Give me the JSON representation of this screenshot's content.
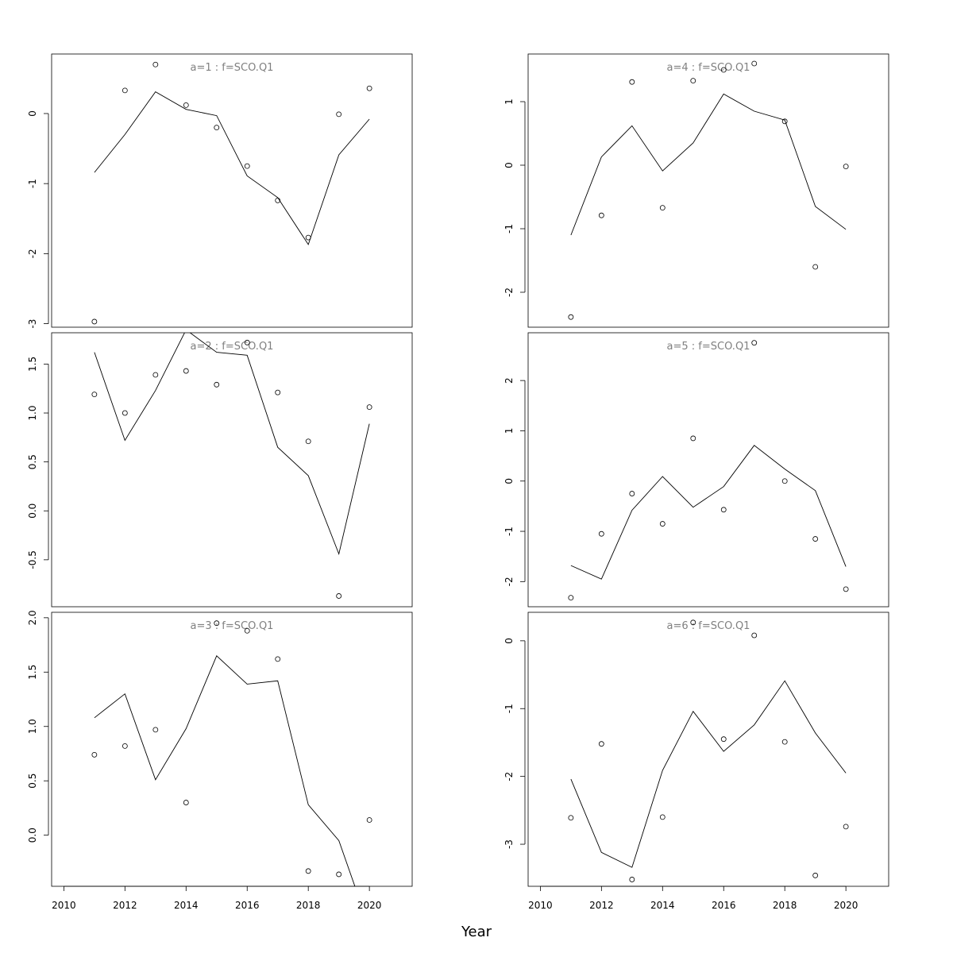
{
  "xlabel": "Year",
  "x_ticks": [
    "2010",
    "2012",
    "2014",
    "2016",
    "2018",
    "2020"
  ],
  "colors": {
    "title": "#808080",
    "line": "#000000",
    "points": "#000000"
  },
  "chart_data": [
    {
      "type": "line",
      "title": "a=1 : f=SCO.Q1",
      "x": [
        2011,
        2012,
        2013,
        2014,
        2015,
        2016,
        2017,
        2018,
        2019,
        2020
      ],
      "series": [
        {
          "values": [
            -0.84,
            -0.3,
            0.31,
            0.06,
            -0.03,
            -0.89,
            -1.2,
            -1.87,
            -0.59,
            -0.08
          ]
        },
        {
          "values": [
            -2.97,
            0.33,
            0.7,
            0.12,
            -0.2,
            -0.75,
            -1.24,
            -1.77,
            -0.01,
            0.36
          ]
        }
      ],
      "xlim": [
        2009.6,
        2021.4
      ],
      "ylim": [
        -3.05,
        0.85
      ],
      "y_ticks": [
        "-3",
        "-2",
        "-1",
        "0"
      ],
      "y_tick_values": [
        -3,
        -2,
        -1,
        0
      ]
    },
    {
      "type": "line",
      "title": "a=4 : f=SCO.Q1",
      "x": [
        2011,
        2012,
        2013,
        2014,
        2015,
        2016,
        2017,
        2018,
        2019,
        2020
      ],
      "series": [
        {
          "values": [
            -1.1,
            0.13,
            0.62,
            -0.09,
            0.35,
            1.12,
            0.85,
            0.71,
            -0.65,
            -1.01
          ]
        },
        {
          "values": [
            -2.39,
            -0.79,
            1.31,
            -0.67,
            1.33,
            1.5,
            1.6,
            0.69,
            -1.6,
            -0.02
          ]
        }
      ],
      "xlim": [
        2009.6,
        2021.4
      ],
      "ylim": [
        -2.55,
        1.75
      ],
      "y_ticks": [
        "-2",
        "-1",
        "0",
        "1"
      ],
      "y_tick_values": [
        -2,
        -1,
        0,
        1
      ]
    },
    {
      "type": "line",
      "title": "a=2 : f=SCO.Q1",
      "x": [
        2011,
        2012,
        2013,
        2014,
        2015,
        2016,
        2017,
        2018,
        2019,
        2020
      ],
      "series": [
        {
          "values": [
            1.62,
            0.72,
            1.23,
            1.85,
            1.62,
            1.59,
            0.65,
            0.36,
            -0.44,
            0.89
          ]
        },
        {
          "values": [
            1.19,
            1.0,
            1.39,
            1.43,
            1.29,
            1.72,
            1.21,
            0.71,
            -0.87,
            1.06
          ]
        }
      ],
      "xlim": [
        2009.6,
        2021.4
      ],
      "ylim": [
        -0.98,
        1.82
      ],
      "y_ticks": [
        "-0.5",
        "0.0",
        "0.5",
        "1.0",
        "1.5"
      ],
      "y_tick_values": [
        -0.5,
        0,
        0.5,
        1,
        1.5
      ]
    },
    {
      "type": "line",
      "title": "a=5 : f=SCO.Q1",
      "x": [
        2011,
        2012,
        2013,
        2014,
        2015,
        2016,
        2017,
        2018,
        2019,
        2020
      ],
      "series": [
        {
          "values": [
            -1.68,
            -1.95,
            -0.58,
            0.09,
            -0.52,
            -0.11,
            0.71,
            0.24,
            -0.19,
            -1.7
          ]
        },
        {
          "values": [
            -2.32,
            -1.05,
            -0.25,
            -0.85,
            0.85,
            -0.57,
            2.75,
            0.0,
            -1.15,
            -2.15
          ]
        }
      ],
      "xlim": [
        2009.6,
        2021.4
      ],
      "ylim": [
        -2.5,
        2.95
      ],
      "y_ticks": [
        "-2",
        "-1",
        "0",
        "1",
        "2"
      ],
      "y_tick_values": [
        -2,
        -1,
        0,
        1,
        2
      ]
    },
    {
      "type": "line",
      "title": "a=3 : f=SCO.Q1",
      "x": [
        2011,
        2012,
        2013,
        2014,
        2015,
        2016,
        2017,
        2018,
        2019,
        2020
      ],
      "series": [
        {
          "values": [
            1.08,
            1.3,
            0.51,
            0.98,
            1.65,
            1.39,
            1.42,
            0.28,
            -0.05,
            -0.85
          ]
        },
        {
          "values": [
            0.74,
            0.82,
            0.97,
            0.3,
            1.95,
            1.88,
            1.62,
            -0.33,
            -0.36,
            0.14
          ]
        }
      ],
      "xlim": [
        2009.6,
        2021.4
      ],
      "ylim": [
        -0.47,
        2.05
      ],
      "y_ticks": [
        "0.0",
        "0.5",
        "1.0",
        "1.5",
        "2.0"
      ],
      "y_tick_values": [
        0,
        0.5,
        1,
        1.5,
        2
      ]
    },
    {
      "type": "line",
      "title": "a=6 : f=SCO.Q1",
      "x": [
        2011,
        2012,
        2013,
        2014,
        2015,
        2016,
        2017,
        2018,
        2019,
        2020
      ],
      "series": [
        {
          "values": [
            -2.04,
            -3.12,
            -3.34,
            -1.91,
            -1.04,
            -1.63,
            -1.24,
            -0.59,
            -1.36,
            -1.95
          ]
        },
        {
          "values": [
            -2.61,
            -1.52,
            -3.52,
            -2.6,
            0.27,
            -1.45,
            0.08,
            -1.49,
            -3.46,
            -2.74
          ]
        }
      ],
      "xlim": [
        2009.6,
        2021.4
      ],
      "ylim": [
        -3.62,
        0.42
      ],
      "y_ticks": [
        "-3",
        "-2",
        "-1",
        "0"
      ],
      "y_tick_values": [
        -3,
        -2,
        -1,
        0
      ]
    }
  ]
}
